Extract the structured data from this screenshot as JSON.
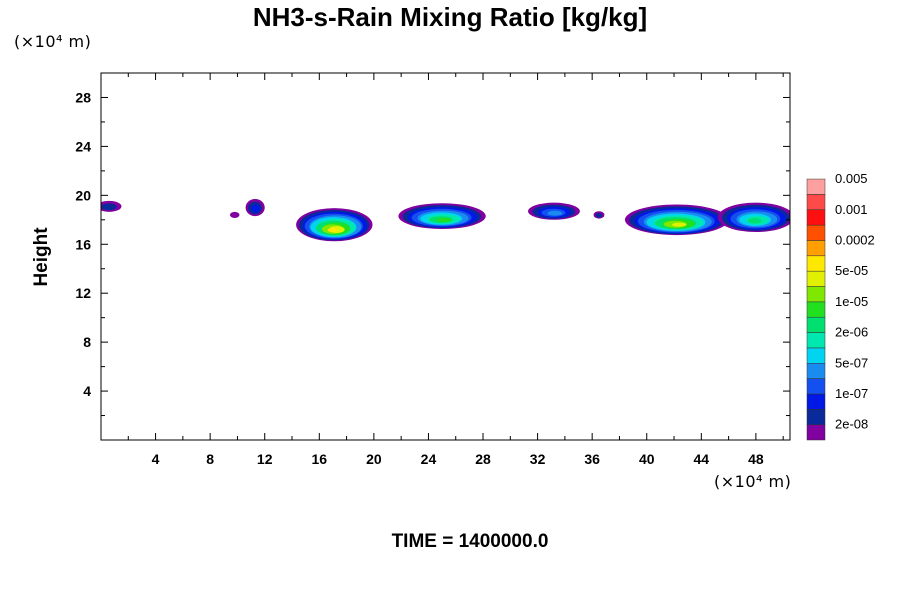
{
  "chart_data": {
    "type": "heatmap",
    "title": "NH3-s-Rain Mixing Ratio [kg/kg]",
    "xlabel": "",
    "ylabel": "Height",
    "x_unit": "(×10⁴ m)",
    "y_unit": "(×10⁴ m)",
    "xlim": [
      0,
      50.5
    ],
    "ylim": [
      0,
      30
    ],
    "x_ticks": [
      4,
      8,
      12,
      16,
      20,
      24,
      28,
      32,
      36,
      40,
      44,
      48
    ],
    "y_ticks": [
      4,
      8,
      12,
      16,
      20,
      24,
      28
    ],
    "colorbar": {
      "colors": [
        "#8000a0",
        "#0a2a9a",
        "#0018e6",
        "#1450f0",
        "#1a8cf0",
        "#00d4f0",
        "#00e8b0",
        "#00e070",
        "#20e020",
        "#80e800",
        "#e0f000",
        "#ffe800",
        "#ffa000",
        "#ff5000",
        "#ff1010",
        "#ff4a4a",
        "#ffa0a0"
      ],
      "labels": [
        "2e-08",
        "1e-07",
        "5e-07",
        "2e-06",
        "1e-05",
        "5e-05",
        "0.0002",
        "0.001",
        "0.005"
      ]
    },
    "features": [
      {
        "x": 0.6,
        "y": 19.1,
        "rx": 0.9,
        "ry": 0.45,
        "peak": 1
      },
      {
        "x": 9.8,
        "y": 18.4,
        "rx": 0.35,
        "ry": 0.25,
        "peak": 0
      },
      {
        "x": 11.3,
        "y": 19.0,
        "rx": 0.7,
        "ry": 0.7,
        "peak": 2
      },
      {
        "x": 17.1,
        "y": 17.6,
        "rx": 2.8,
        "ry": 1.35,
        "peak": 11
      },
      {
        "x": 25.0,
        "y": 18.3,
        "rx": 3.2,
        "ry": 1.05,
        "peak": 8
      },
      {
        "x": 33.2,
        "y": 18.7,
        "rx": 1.9,
        "ry": 0.7,
        "peak": 4
      },
      {
        "x": 36.5,
        "y": 18.4,
        "rx": 0.4,
        "ry": 0.3,
        "peak": 1
      },
      {
        "x": 42.2,
        "y": 18.0,
        "rx": 3.8,
        "ry": 1.25,
        "peak": 10
      },
      {
        "x": 48.0,
        "y": 18.2,
        "rx": 2.8,
        "ry": 1.2,
        "peak": 7
      }
    ]
  },
  "footer": "TIME = 1400000.0"
}
